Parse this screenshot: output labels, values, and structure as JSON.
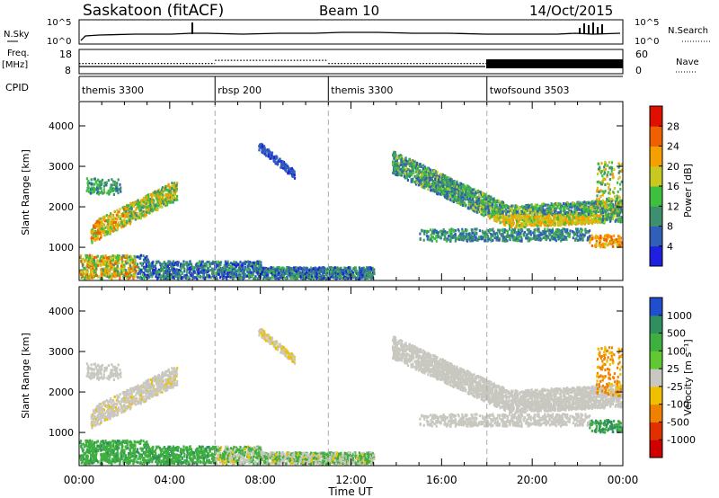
{
  "header": {
    "station": "Saskatoon (fitACF)",
    "beam": "Beam 10",
    "date": "14/Oct/2015"
  },
  "summary": {
    "nsky_label": "N.Sky",
    "nsky_ticks": [
      "10^5",
      "10^0"
    ],
    "nsearch_label": "N.Search",
    "nsearch_ticks": [
      "10^5",
      "10^0"
    ],
    "freq_label": "Freq.",
    "freq_unit": "[MHz]",
    "freq_ticks": [
      "18",
      "8"
    ],
    "nave_label": "Nave",
    "nave_ticks": [
      "60",
      "0"
    ],
    "cpid_label": "CPID",
    "cpid_segments": [
      {
        "label": "themis 3300",
        "start": 0,
        "end": 6
      },
      {
        "label": "rbsp 200",
        "start": 6,
        "end": 11
      },
      {
        "label": "themis 3300",
        "start": 11,
        "end": 18
      },
      {
        "label": "twofsound 3503",
        "start": 18,
        "end": 24
      }
    ],
    "freq_segments": [
      {
        "start": 0,
        "end": 6,
        "freq": 12.2
      },
      {
        "start": 6,
        "end": 11,
        "freq": 13.5
      },
      {
        "start": 11,
        "end": 18,
        "freq": 12.2
      }
    ]
  },
  "chart_data": [
    {
      "type": "heatmap",
      "name": "power",
      "xlabel": "Time UT",
      "ylabel": "Slant Range [km]",
      "xlim": [
        0,
        24
      ],
      "ylim": [
        180,
        4600
      ],
      "x_ticks": [
        "00:00",
        "04:00",
        "08:00",
        "12:00",
        "16:00",
        "20:00",
        "00:00"
      ],
      "y_ticks": [
        1000,
        2000,
        3000,
        4000
      ],
      "colorbar_label": "Power [dB]",
      "colorbar_ticks": [
        4,
        8,
        12,
        16,
        20,
        24,
        28
      ],
      "colorbar_range": [
        0,
        30
      ],
      "colorbar_colors": [
        "#1f1fdf",
        "#2f5fb8",
        "#3e8f6e",
        "#3fbf3f",
        "#c8c820",
        "#f5a000",
        "#f06000",
        "#e01000"
      ],
      "regions": [
        {
          "t0": 0.6,
          "t1": 4.3,
          "r0": 1100,
          "r1": 2700,
          "value": 16,
          "desc": "arc"
        },
        {
          "t0": 7.8,
          "t1": 9.5,
          "r0": 2800,
          "r1": 3500,
          "value": 6
        },
        {
          "t0": 13.8,
          "t1": 24,
          "r0": 1200,
          "r1": 3300,
          "value": 14
        },
        {
          "t0": 0,
          "t1": 13,
          "r0": 250,
          "r1": 800,
          "value": 14
        },
        {
          "t0": 22.5,
          "t1": 24,
          "r0": 900,
          "r1": 1300,
          "value": 22
        }
      ]
    },
    {
      "type": "heatmap",
      "name": "velocity",
      "xlabel": "Time UT",
      "ylabel": "Slant Range [km]",
      "xlim": [
        0,
        24
      ],
      "ylim": [
        180,
        4600
      ],
      "x_ticks": [
        "00:00",
        "04:00",
        "08:00",
        "12:00",
        "16:00",
        "20:00",
        "00:00"
      ],
      "y_ticks": [
        1000,
        2000,
        3000,
        4000
      ],
      "colorbar_label": "Velocity [m s⁻¹]",
      "colorbar_ticks": [
        "1000",
        "500",
        "100",
        "25",
        "-25",
        "-100",
        "-500",
        "-1000"
      ],
      "colorbar_colors": [
        "#1f4fcf",
        "#2f8f5f",
        "#3faf3f",
        "#60c830",
        "#c8c8c0",
        "#f0c000",
        "#f08000",
        "#e03000",
        "#d00000"
      ]
    }
  ]
}
